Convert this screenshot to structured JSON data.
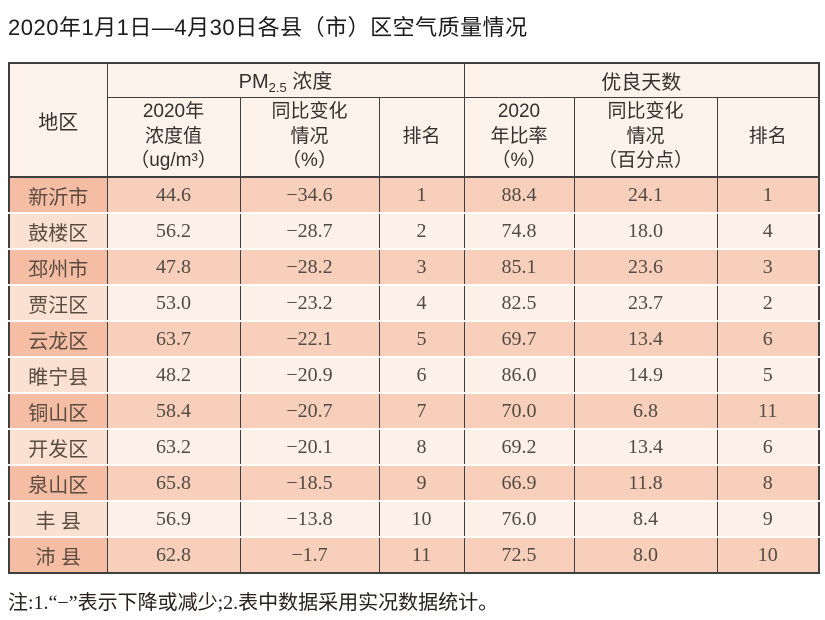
{
  "title": "2020年1月1日—4月30日各县（市）区空气质量情况",
  "note": "注:1.“−”表示下降或减少;2.表中数据采用实况数据统计。",
  "colors": {
    "row_odd_bg": "#f8cfba",
    "row_odd_region_bg": "#f4bda4",
    "row_even_bg": "#fdf1e9",
    "row_even_region_bg": "#fbe1d2",
    "header_bg": "#fdf3ea",
    "border": "#3f3f3f",
    "page_bg": "#ffffff"
  },
  "table": {
    "header": {
      "region": "地区",
      "pm_group": {
        "prefix": "PM",
        "sub": "2.5",
        "suffix": " 浓度"
      },
      "good_group": "优良天数",
      "sub_headers": {
        "pm_value": "2020年\n浓度值\n（ug/m³）",
        "pm_change": "同比变化\n情况\n（%）",
        "pm_rank": "排名",
        "good_ratio": "2020\n年比率\n（%）",
        "good_change": "同比变化\n情况\n（百分点）",
        "good_rank": "排名"
      }
    },
    "rows": [
      {
        "region": "新沂市",
        "pm_value": "44.6",
        "pm_change": "−34.6",
        "pm_rank": "1",
        "good_ratio": "88.4",
        "good_change": "24.1",
        "good_rank": "1"
      },
      {
        "region": "鼓楼区",
        "pm_value": "56.2",
        "pm_change": "−28.7",
        "pm_rank": "2",
        "good_ratio": "74.8",
        "good_change": "18.0",
        "good_rank": "4"
      },
      {
        "region": "邳州市",
        "pm_value": "47.8",
        "pm_change": "−28.2",
        "pm_rank": "3",
        "good_ratio": "85.1",
        "good_change": "23.6",
        "good_rank": "3"
      },
      {
        "region": "贾汪区",
        "pm_value": "53.0",
        "pm_change": "−23.2",
        "pm_rank": "4",
        "good_ratio": "82.5",
        "good_change": "23.7",
        "good_rank": "2"
      },
      {
        "region": "云龙区",
        "pm_value": "63.7",
        "pm_change": "−22.1",
        "pm_rank": "5",
        "good_ratio": "69.7",
        "good_change": "13.4",
        "good_rank": "6"
      },
      {
        "region": "睢宁县",
        "pm_value": "48.2",
        "pm_change": "−20.9",
        "pm_rank": "6",
        "good_ratio": "86.0",
        "good_change": "14.9",
        "good_rank": "5"
      },
      {
        "region": "铜山区",
        "pm_value": "58.4",
        "pm_change": "−20.7",
        "pm_rank": "7",
        "good_ratio": "70.0",
        "good_change": "6.8",
        "good_rank": "11"
      },
      {
        "region": "开发区",
        "pm_value": "63.2",
        "pm_change": "−20.1",
        "pm_rank": "8",
        "good_ratio": "69.2",
        "good_change": "13.4",
        "good_rank": "6"
      },
      {
        "region": "泉山区",
        "pm_value": "65.8",
        "pm_change": "−18.5",
        "pm_rank": "9",
        "good_ratio": "66.9",
        "good_change": "11.8",
        "good_rank": "8"
      },
      {
        "region": "丰 县",
        "pm_value": "56.9",
        "pm_change": "−13.8",
        "pm_rank": "10",
        "good_ratio": "76.0",
        "good_change": "8.4",
        "good_rank": "9"
      },
      {
        "region": "沛 县",
        "pm_value": "62.8",
        "pm_change": "−1.7",
        "pm_rank": "11",
        "good_ratio": "72.5",
        "good_change": "8.0",
        "good_rank": "10"
      }
    ]
  }
}
